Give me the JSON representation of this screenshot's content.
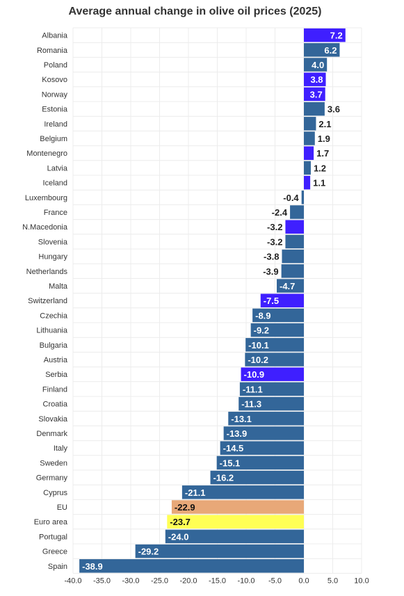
{
  "chart_data": {
    "type": "bar",
    "orientation": "horizontal",
    "title": "Average annual change in olive oil prices (2025)",
    "xlabel": "",
    "ylabel": "",
    "xlim": [
      -40,
      10
    ],
    "x_ticks": [
      -40,
      -35,
      -30,
      -25,
      -20,
      -15,
      -10,
      -5,
      0,
      5,
      10
    ],
    "x_tick_labels": [
      "-40.0",
      "-35.0",
      "-30.0",
      "-25.0",
      "-20.0",
      "-15.0",
      "-10.0",
      "-5.0",
      "0.0",
      "5.0",
      "10.0"
    ],
    "grid": true,
    "legend": "none",
    "categories": [
      "Albania",
      "Romania",
      "Poland",
      "Kosovo",
      "Norway",
      "Estonia",
      "Ireland",
      "Belgium",
      "Montenegro",
      "Latvia",
      "Iceland",
      "Luxembourg",
      "France",
      "N.Macedonia",
      "Slovenia",
      "Hungary",
      "Netherlands",
      "Malta",
      "Switzerland",
      "Czechia",
      "Lithuania",
      "Bulgaria",
      "Austria",
      "Serbia",
      "Finland",
      "Croatia",
      "Slovakia",
      "Denmark",
      "Italy",
      "Sweden",
      "Germany",
      "Cyprus",
      "EU",
      "Euro area",
      "Portugal",
      "Greece",
      "Spain"
    ],
    "values": [
      7.2,
      6.2,
      4.0,
      3.8,
      3.7,
      3.6,
      2.1,
      1.9,
      1.7,
      1.2,
      1.1,
      -0.4,
      -2.4,
      -3.2,
      -3.2,
      -3.8,
      -3.9,
      -4.7,
      -7.5,
      -8.9,
      -9.2,
      -10.1,
      -10.2,
      -10.9,
      -11.1,
      -11.3,
      -13.1,
      -13.9,
      -14.5,
      -15.1,
      -16.2,
      -21.1,
      -22.9,
      -23.7,
      -24.0,
      -29.2,
      -38.9
    ],
    "value_labels": [
      "7.2",
      "6.2",
      "4.0",
      "3.8",
      "3.7",
      "3.6",
      "2.1",
      "1.9",
      "1.7",
      "1.2",
      "1.1",
      "-0.4",
      "-2.4",
      "-3.2",
      "-3.2",
      "-3.8",
      "-3.9",
      "-4.7",
      "-7.5",
      "-8.9",
      "-9.2",
      "-10.1",
      "-10.2",
      "-10.9",
      "-11.1",
      "-11.3",
      "-13.1",
      "-13.9",
      "-14.5",
      "-15.1",
      "-16.2",
      "-21.1",
      "-22.9",
      "-23.7",
      "-24.0",
      "-29.2",
      "-38.9"
    ],
    "bar_colors": [
      "#3f1fff",
      "#336699",
      "#336699",
      "#3f1fff",
      "#3f1fff",
      "#336699",
      "#336699",
      "#336699",
      "#3f1fff",
      "#336699",
      "#3f1fff",
      "#336699",
      "#336699",
      "#3f1fff",
      "#336699",
      "#336699",
      "#336699",
      "#336699",
      "#3f1fff",
      "#336699",
      "#336699",
      "#336699",
      "#336699",
      "#3f1fff",
      "#336699",
      "#336699",
      "#336699",
      "#336699",
      "#336699",
      "#336699",
      "#336699",
      "#336699",
      "#e8a878",
      "#ffff55",
      "#336699",
      "#336699",
      "#336699"
    ],
    "colors": {
      "default": "#336699",
      "non_eu": "#3f1fff",
      "eu": "#e8a878",
      "euro_area": "#ffff55"
    }
  }
}
